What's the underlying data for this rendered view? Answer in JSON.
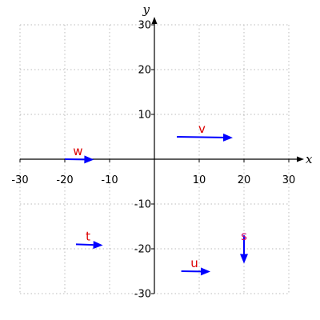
{
  "chart_data": {
    "type": "vector-field",
    "xlabel": "x",
    "ylabel": "y",
    "xlim": [
      -30,
      30
    ],
    "ylim": [
      -30,
      30
    ],
    "x_ticks": [
      -30,
      -20,
      -10,
      10,
      20,
      30
    ],
    "y_ticks": [
      -30,
      -20,
      -10,
      10,
      20,
      30
    ],
    "grid": true,
    "vectors": [
      {
        "name": "v",
        "start": [
          5,
          5
        ],
        "end": [
          17.5,
          4.8
        ],
        "color": "#0000ff",
        "label_color": "#dd0000"
      },
      {
        "name": "w",
        "start": [
          -20,
          0
        ],
        "end": [
          -13.5,
          -0.1
        ],
        "color": "#0000ff",
        "label_color": "#dd0000"
      },
      {
        "name": "t",
        "start": [
          -17.5,
          -19
        ],
        "end": [
          -11.5,
          -19.2
        ],
        "color": "#0000ff",
        "label_color": "#dd0000"
      },
      {
        "name": "u",
        "start": [
          6,
          -25
        ],
        "end": [
          12.5,
          -25.1
        ],
        "color": "#0000ff",
        "label_color": "#dd0000"
      },
      {
        "name": "s",
        "start": [
          20,
          -17
        ],
        "end": [
          20,
          -23.3
        ],
        "color": "#0000ff",
        "label_color": "#cc0066"
      }
    ]
  }
}
